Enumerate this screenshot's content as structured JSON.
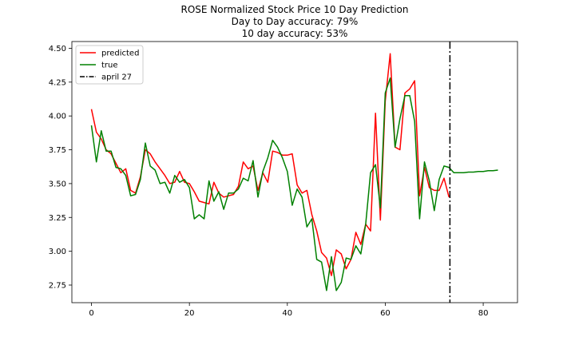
{
  "chart_data": {
    "type": "line",
    "title_lines": [
      "ROSE Normalized Stock Price 10 Day Prediction",
      "Day to Day accuracy: 79%",
      "10 day accuracy: 53%"
    ],
    "xlabel": "",
    "ylabel": "",
    "xlim": [
      -4,
      87
    ],
    "ylim": [
      2.62,
      4.55
    ],
    "x_ticks": [
      0,
      20,
      40,
      60,
      80
    ],
    "y_ticks": [
      2.75,
      3.0,
      3.25,
      3.5,
      3.75,
      4.0,
      4.25,
      4.5
    ],
    "y_tick_labels": [
      "2.75",
      "3.00",
      "3.25",
      "3.50",
      "3.75",
      "4.00",
      "4.25",
      "4.50"
    ],
    "grid": false,
    "legend_position": "top-left",
    "series": [
      {
        "name": "predicted",
        "color": "#ff0000",
        "x": [
          0,
          1,
          2,
          3,
          4,
          5,
          6,
          7,
          8,
          9,
          10,
          11,
          12,
          13,
          14,
          15,
          16,
          17,
          18,
          19,
          20,
          21,
          22,
          23,
          24,
          25,
          26,
          27,
          28,
          29,
          30,
          31,
          32,
          33,
          34,
          35,
          36,
          37,
          38,
          39,
          40,
          41,
          42,
          43,
          44,
          45,
          46,
          47,
          48,
          49,
          50,
          51,
          52,
          53,
          54,
          55,
          56,
          57,
          58,
          59,
          60,
          61,
          62,
          63,
          64,
          65,
          66,
          67,
          68,
          69,
          70,
          71,
          72,
          73
        ],
        "values": [
          4.05,
          3.88,
          3.83,
          3.75,
          3.72,
          3.65,
          3.58,
          3.61,
          3.45,
          3.43,
          3.55,
          3.75,
          3.72,
          3.66,
          3.61,
          3.56,
          3.5,
          3.51,
          3.59,
          3.51,
          3.5,
          3.44,
          3.37,
          3.36,
          3.35,
          3.51,
          3.43,
          3.4,
          3.41,
          3.42,
          3.48,
          3.66,
          3.61,
          3.63,
          3.45,
          3.58,
          3.51,
          3.74,
          3.73,
          3.71,
          3.71,
          3.72,
          3.49,
          3.43,
          3.45,
          3.27,
          3.15,
          2.99,
          2.95,
          2.82,
          3.01,
          2.98,
          2.87,
          2.94,
          3.14,
          3.05,
          3.2,
          3.15,
          4.02,
          3.23,
          4.11,
          4.46,
          3.77,
          3.75,
          4.17,
          4.2,
          4.26,
          3.41,
          3.62,
          3.47,
          3.45,
          3.45,
          3.54,
          3.4
        ]
      },
      {
        "name": "true",
        "color": "#008000",
        "x": [
          0,
          1,
          2,
          3,
          4,
          5,
          6,
          7,
          8,
          9,
          10,
          11,
          12,
          13,
          14,
          15,
          16,
          17,
          18,
          19,
          20,
          21,
          22,
          23,
          24,
          25,
          26,
          27,
          28,
          29,
          30,
          31,
          32,
          33,
          34,
          35,
          36,
          37,
          38,
          39,
          40,
          41,
          42,
          43,
          44,
          45,
          46,
          47,
          48,
          49,
          50,
          51,
          52,
          53,
          54,
          55,
          56,
          57,
          58,
          59,
          60,
          61,
          62,
          63,
          64,
          65,
          66,
          67,
          68,
          69,
          70,
          71,
          72,
          73,
          74,
          75,
          76,
          77,
          78,
          79,
          80,
          81,
          82,
          83
        ],
        "values": [
          3.93,
          3.66,
          3.89,
          3.74,
          3.74,
          3.62,
          3.61,
          3.56,
          3.41,
          3.42,
          3.53,
          3.8,
          3.63,
          3.6,
          3.5,
          3.51,
          3.43,
          3.56,
          3.51,
          3.53,
          3.47,
          3.24,
          3.27,
          3.24,
          3.52,
          3.37,
          3.44,
          3.31,
          3.43,
          3.43,
          3.46,
          3.54,
          3.52,
          3.67,
          3.4,
          3.59,
          3.69,
          3.82,
          3.77,
          3.69,
          3.59,
          3.34,
          3.46,
          3.4,
          3.18,
          3.24,
          2.94,
          2.92,
          2.71,
          2.96,
          2.71,
          2.77,
          2.95,
          2.94,
          3.04,
          2.98,
          3.2,
          3.58,
          3.64,
          3.32,
          4.17,
          4.28,
          3.77,
          3.98,
          4.15,
          4.15,
          3.96,
          3.24,
          3.66,
          3.52,
          3.3,
          3.53,
          3.63,
          3.62,
          3.58,
          3.58,
          3.58,
          3.585,
          3.585,
          3.59,
          3.59,
          3.595,
          3.595,
          3.6
        ]
      }
    ],
    "vline": {
      "label": "april 27",
      "x": 73.2,
      "color": "#000000"
    }
  }
}
